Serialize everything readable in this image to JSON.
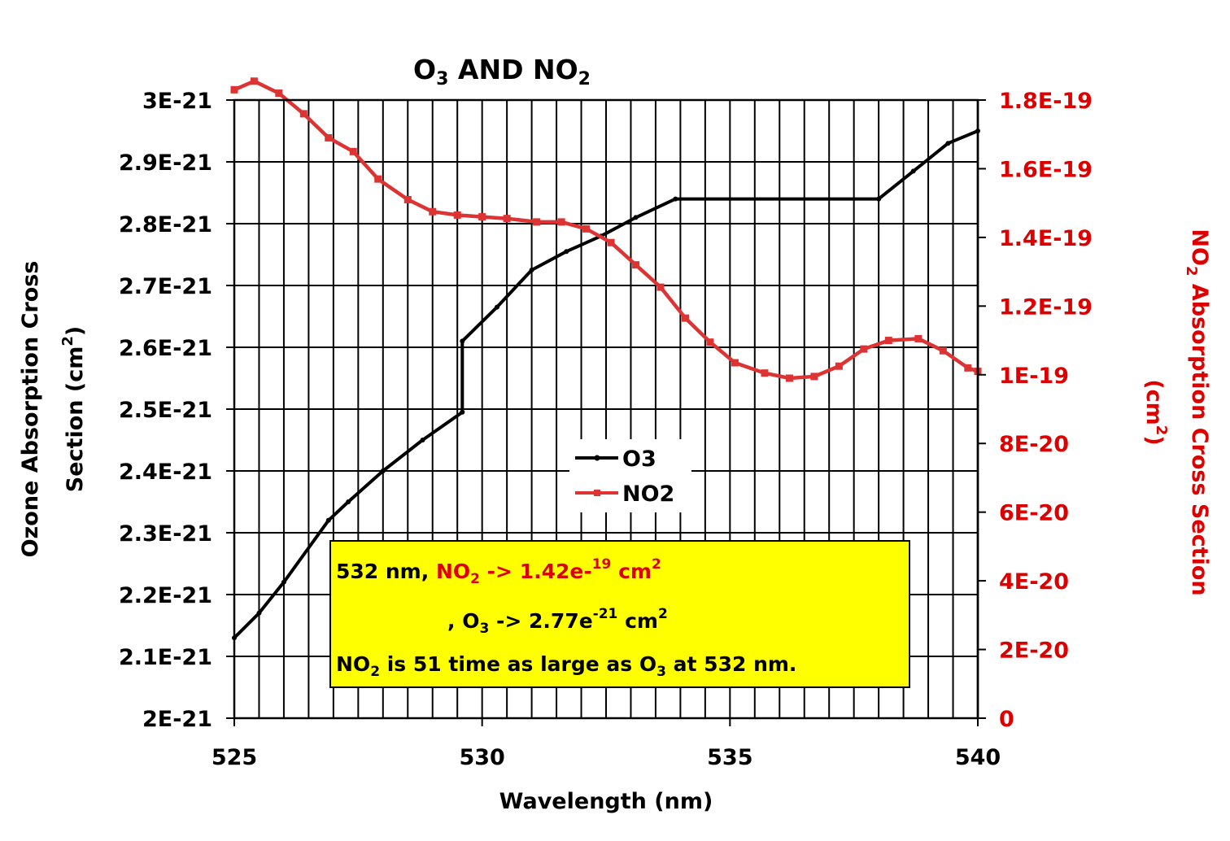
{
  "chart_data": {
    "type": "line",
    "title_parts": [
      "O",
      "3",
      " AND NO",
      "2"
    ],
    "xlabel": "Wavelength (nm)",
    "ylabel_left_line1": "Ozone Absorption Cross",
    "ylabel_left_line2": "Section (cm",
    "ylabel_left_sup": "2",
    "ylabel_left_close": ")",
    "ylabel_right_line1_pre": "NO",
    "ylabel_right_line1_sub": "2",
    "ylabel_right_line1_post": " Absorption Cross Section",
    "ylabel_right_line2": "(cm",
    "ylabel_right_sup": "2",
    "ylabel_right_close": ")",
    "xlim": [
      525,
      540
    ],
    "ylim_left": [
      2e-21,
      3e-21
    ],
    "ylim_right": [
      0,
      1.8e-19
    ],
    "x_tick_values": [
      525,
      530,
      535,
      540
    ],
    "x_tick_labels": [
      "525",
      "530",
      "535",
      "540"
    ],
    "x_grid_step": 0.5,
    "left_tick_values": [
      2e-21,
      2.1e-21,
      2.2e-21,
      2.3e-21,
      2.4e-21,
      2.5e-21,
      2.6e-21,
      2.7e-21,
      2.8e-21,
      2.9e-21,
      3e-21
    ],
    "left_tick_labels": [
      "2E-21",
      "2.1E-21",
      "2.2E-21",
      "2.3E-21",
      "2.4E-21",
      "2.5E-21",
      "2.6E-21",
      "2.7E-21",
      "2.8E-21",
      "2.9E-21",
      "3E-21"
    ],
    "right_tick_values": [
      0,
      2e-20,
      4e-20,
      6e-20,
      8e-20,
      1e-19,
      1.2e-19,
      1.4e-19,
      1.6e-19,
      1.8e-19
    ],
    "right_tick_labels": [
      "0",
      "2E-20",
      "4E-20",
      "6E-20",
      "8E-20",
      "1E-19",
      "1.2E-19",
      "1.4E-19",
      "1.6E-19",
      "1.8E-19"
    ],
    "grid": true,
    "legend_position": "center",
    "series": [
      {
        "name": "O3",
        "axis": "left",
        "color": "#000000",
        "marker": "dot",
        "x": [
          525.0,
          525.5,
          526.0,
          526.9,
          527.3,
          528.0,
          528.8,
          529.6,
          529.6,
          530.3,
          531.0,
          531.7,
          532.4,
          533.1,
          533.9,
          538.0,
          538.7,
          539.4,
          540.0
        ],
        "y": [
          2.13e-21,
          2.17e-21,
          2.22e-21,
          2.32e-21,
          2.35e-21,
          2.4e-21,
          2.45e-21,
          2.495e-21,
          2.61e-21,
          2.665e-21,
          2.725e-21,
          2.755e-21,
          2.78e-21,
          2.81e-21,
          2.84e-21,
          2.84e-21,
          2.885e-21,
          2.93e-21,
          2.95e-21
        ]
      },
      {
        "name": "NO2",
        "axis": "right",
        "color": "#dd3333",
        "marker": "square",
        "x": [
          525.0,
          525.4,
          525.9,
          526.4,
          526.9,
          527.4,
          527.9,
          528.5,
          529.0,
          529.5,
          530.0,
          530.5,
          531.1,
          531.6,
          532.1,
          532.6,
          533.1,
          533.6,
          534.1,
          534.6,
          535.1,
          535.7,
          536.2,
          536.7,
          537.2,
          537.7,
          538.2,
          538.8,
          539.3,
          539.8,
          540.0
        ],
        "y": [
          1.83e-19,
          1.855e-19,
          1.82e-19,
          1.76e-19,
          1.69e-19,
          1.65e-19,
          1.57e-19,
          1.51e-19,
          1.475e-19,
          1.465e-19,
          1.46e-19,
          1.455e-19,
          1.445e-19,
          1.445e-19,
          1.425e-19,
          1.385e-19,
          1.32e-19,
          1.255e-19,
          1.165e-19,
          1.095e-19,
          1.035e-19,
          1.005e-19,
          9.9e-20,
          9.95e-20,
          1.025e-19,
          1.075e-19,
          1.1e-19,
          1.105e-19,
          1.07e-19,
          1.02e-19,
          1.01e-19
        ]
      }
    ],
    "annotation": {
      "background": "#ffff00",
      "line1": {
        "a": "532 nm, ",
        "b": "NO",
        "b_sub": "2",
        "c": " -> 1.42e-",
        "c_sup": "19",
        "d": " cm",
        "d_sup": "2"
      },
      "line2": {
        "a": ",   O",
        "a_sub": "3",
        "b": " -> 2.77e",
        "b_sup": "-21",
        "c": " cm",
        "c_sup": "2"
      },
      "line3": {
        "a": "NO",
        "a_sub": "2",
        "b": " is 51 time as large as O",
        "b_sub": "3",
        "c": " at 532 nm."
      }
    }
  }
}
